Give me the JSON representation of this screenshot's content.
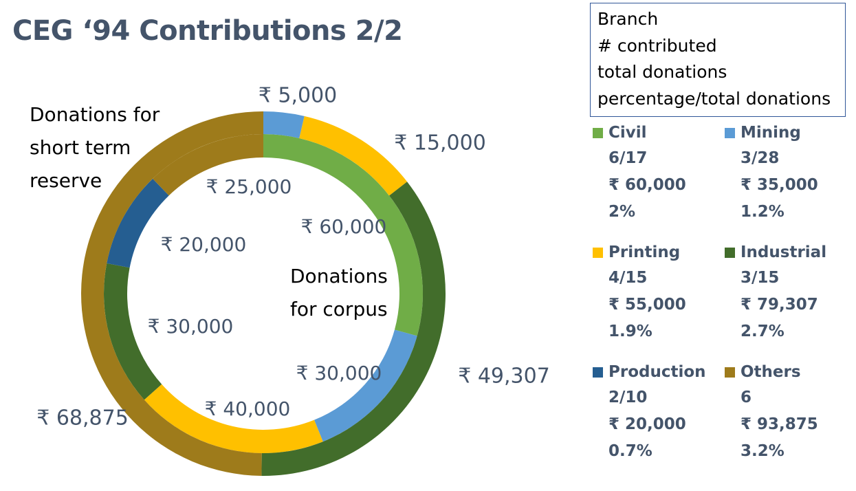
{
  "title": "CEG ‘94 Contributions 2/2",
  "info_box": {
    "lines": [
      "Branch",
      "# contributed",
      "total donations",
      "percentage/total donations"
    ]
  },
  "annotations": {
    "short_term": [
      "Donations for",
      "short term",
      "reserve"
    ],
    "corpus": [
      "Donations",
      "for corpus"
    ]
  },
  "chart_data": {
    "type": "donut",
    "title": "CEG ‘94 Contributions 2/2",
    "rings": [
      {
        "name": "Donations for corpus",
        "position": "inner",
        "slices": [
          {
            "category": "Civil",
            "value": 60000,
            "label": "₹ 60,000"
          },
          {
            "category": "Mining",
            "value": 30000,
            "label": "₹ 30,000"
          },
          {
            "category": "Printing",
            "value": 40000,
            "label": "₹ 40,000"
          },
          {
            "category": "Industrial",
            "value": 30000,
            "label": "₹ 30,000"
          },
          {
            "category": "Production",
            "value": 20000,
            "label": "₹ 20,000"
          },
          {
            "category": "Others",
            "value": 25000,
            "label": "₹ 25,000"
          }
        ]
      },
      {
        "name": "Donations for short term reserve",
        "position": "outer",
        "slices": [
          {
            "category": "Mining",
            "value": 5000,
            "label": "₹ 5,000"
          },
          {
            "category": "Printing",
            "value": 15000,
            "label": "₹ 15,000"
          },
          {
            "category": "Industrial",
            "value": 49307,
            "label": "₹ 49,307"
          },
          {
            "category": "Others",
            "value": 68875,
            "label": "₹ 68,875"
          }
        ]
      }
    ],
    "colors": {
      "Civil": "#70ad47",
      "Mining": "#5b9bd5",
      "Printing": "#ffc000",
      "Industrial": "#426d2b",
      "Production": "#255e91",
      "Others": "#9e7b1b"
    },
    "legend": [
      {
        "name": "Civil",
        "contributed": "6/17",
        "total": "₹ 60,000",
        "percentage": "2%"
      },
      {
        "name": "Mining",
        "contributed": "3/28",
        "total": "₹ 35,000",
        "percentage": "1.2%"
      },
      {
        "name": "Printing",
        "contributed": "4/15",
        "total": "₹ 55,000",
        "percentage": "1.9%"
      },
      {
        "name": "Industrial",
        "contributed": "3/15",
        "total": "₹ 79,307",
        "percentage": "2.7%"
      },
      {
        "name": "Production",
        "contributed": "2/10",
        "total": "₹ 20,000",
        "percentage": "0.7%"
      },
      {
        "name": "Others",
        "contributed": "6",
        "total": "₹ 93,875",
        "percentage": "3.2%"
      }
    ]
  }
}
